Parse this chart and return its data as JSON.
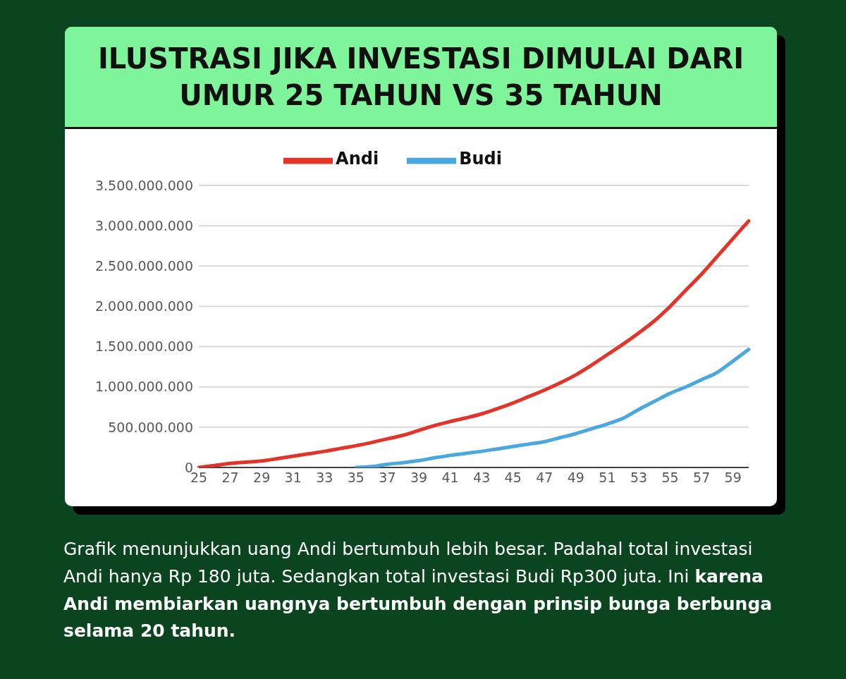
{
  "chart_data": {
    "type": "line",
    "title": "ILUSTRASI JIKA INVESTASI DIMULAI DARI UMUR 25 TAHUN VS 35 TAHUN",
    "categories": [
      "25",
      null,
      "27",
      null,
      "29",
      null,
      "31",
      null,
      "33",
      null,
      "35",
      null,
      "37",
      null,
      "39",
      null,
      "41",
      null,
      "43",
      null,
      "45",
      null,
      "47",
      null,
      "49",
      null,
      "51",
      null,
      "53",
      null,
      "55",
      null,
      "57",
      null,
      "59",
      null
    ],
    "series": [
      {
        "name": "Andi",
        "color": "#e3342a",
        "values": [
          0,
          25000000,
          50000000,
          65000000,
          80000000,
          110000000,
          140000000,
          170000000,
          200000000,
          235000000,
          270000000,
          310000000,
          355000000,
          400000000,
          460000000,
          520000000,
          570000000,
          615000000,
          665000000,
          730000000,
          800000000,
          880000000,
          960000000,
          1050000000,
          1150000000,
          1270000000,
          1400000000,
          1530000000,
          1670000000,
          1820000000,
          2000000000,
          2200000000,
          2400000000,
          2620000000,
          2840000000,
          3060000000
        ]
      },
      {
        "name": "Budi",
        "color": "#4aa8e0",
        "values": [
          null,
          null,
          null,
          null,
          null,
          null,
          null,
          null,
          null,
          null,
          0,
          10000000,
          40000000,
          60000000,
          85000000,
          120000000,
          150000000,
          175000000,
          200000000,
          230000000,
          260000000,
          290000000,
          320000000,
          370000000,
          420000000,
          480000000,
          540000000,
          610000000,
          720000000,
          820000000,
          920000000,
          1000000000,
          1090000000,
          1180000000,
          1320000000,
          1465000000
        ]
      }
    ],
    "ylim": [
      0,
      3500000000
    ],
    "yticks": [
      0,
      {
        "value": 500000000,
        "label": "500.000.000"
      },
      {
        "value": 1000000000,
        "label": "1.000.000.000"
      },
      {
        "value": 1500000000,
        "label": "1.500.000.000"
      },
      {
        "value": 2000000000,
        "label": "2.000.000.000"
      },
      {
        "value": 2500000000,
        "label": "2.500.000.000"
      },
      {
        "value": 3000000000,
        "label": "3.000.000.000"
      },
      {
        "value": 3500000000,
        "label": "3.500.000.000"
      }
    ],
    "grid": "y",
    "legend": "top",
    "annotations": [
      "Grafik menunjukkan uang Andi bertumbuh lebih besar. Padahal total investasi Andi hanya Rp 180 juta. Sedangkan total investasi Budi Rp300 juta. Ini ",
      "karena Andi membiarkan uangnya bertumbuh dengan prinsip bunga berbunga selama 20 tahun."
    ]
  }
}
